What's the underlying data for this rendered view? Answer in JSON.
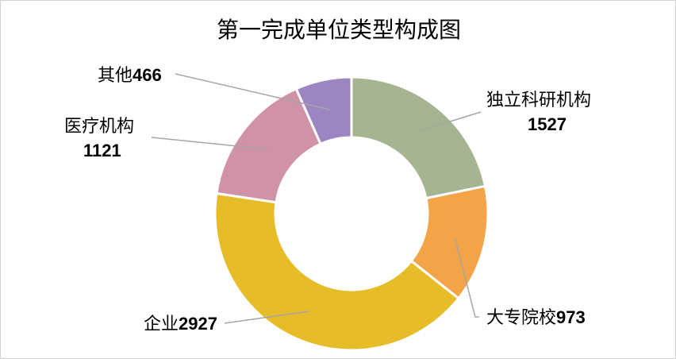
{
  "chart_data": {
    "type": "pie",
    "variant": "donut",
    "title": "第一完成单位类型构成图",
    "slices": [
      {
        "name": "独立科研机构",
        "value": 1527,
        "color": "#A5B592"
      },
      {
        "name": "大专院校",
        "value": 973,
        "color": "#F3A447"
      },
      {
        "name": "企业",
        "value": 2927,
        "color": "#E7BC29"
      },
      {
        "name": "医疗机构",
        "value": 1121,
        "color": "#D092A7"
      },
      {
        "name": "其他",
        "value": 466,
        "color": "#9C85C0"
      }
    ],
    "labels": [
      {
        "name": "独立科研机构",
        "value": "1527"
      },
      {
        "name": "大专院校",
        "value": "973"
      },
      {
        "name": "企业",
        "value": "2927"
      },
      {
        "name": "医疗机构",
        "value": "1121"
      },
      {
        "name": "其他",
        "value": "466"
      }
    ],
    "leader_line_color": "#A6A6A6",
    "legend": "none"
  }
}
